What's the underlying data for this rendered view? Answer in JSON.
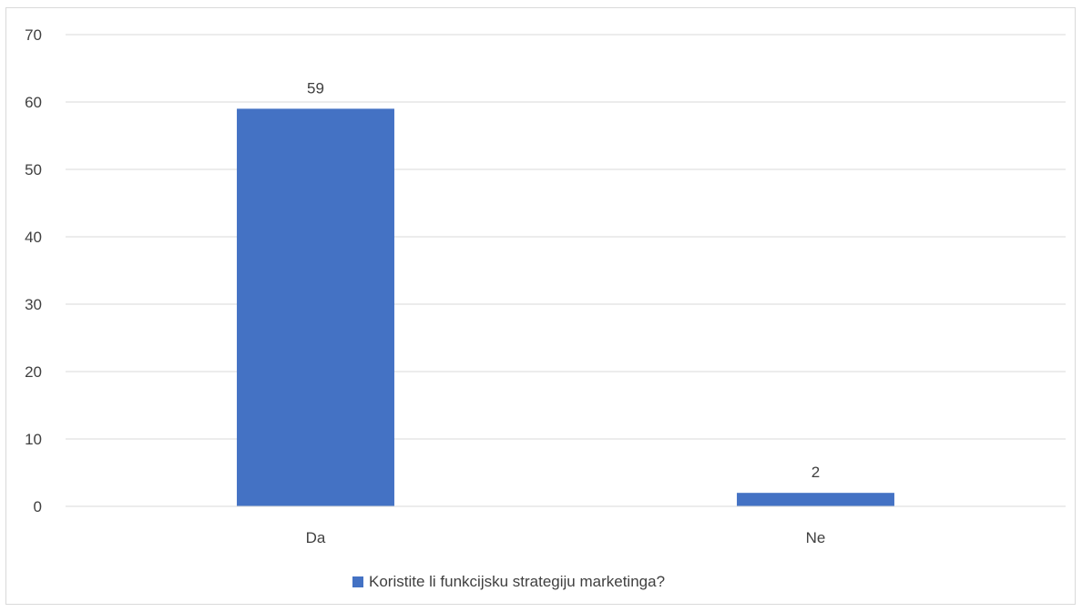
{
  "chart_data": {
    "type": "bar",
    "categories": [
      "Da",
      "Ne"
    ],
    "series": [
      {
        "name": "Koristite li funkcijsku strategiju marketinga?",
        "values": [
          59,
          2
        ],
        "color": "#4472c4"
      }
    ],
    "data_labels": [
      "59",
      "2"
    ],
    "y_ticks": [
      "0",
      "10",
      "20",
      "30",
      "40",
      "50",
      "60",
      "70"
    ],
    "ylim": [
      0,
      70
    ],
    "grid": true,
    "legend_position": "bottom",
    "title": "",
    "xlabel": "",
    "ylabel": ""
  }
}
